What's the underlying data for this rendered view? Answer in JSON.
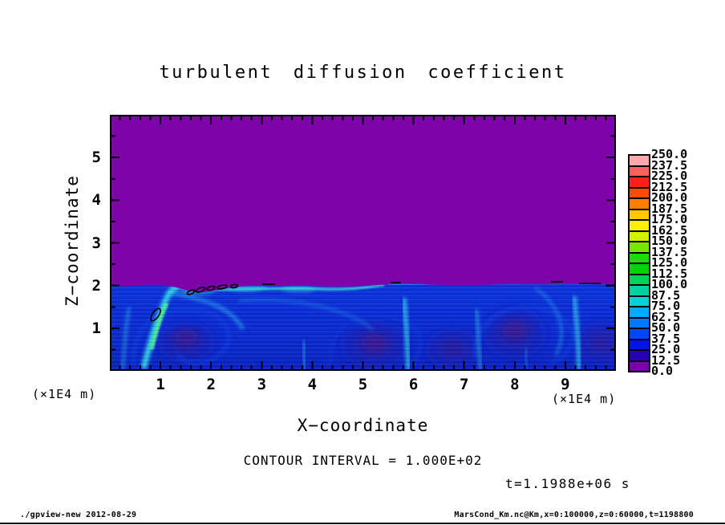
{
  "title": "turbulent diffusion coefficient",
  "axes": {
    "x": {
      "label": "X−coordinate",
      "unit": "(×1E4 m)",
      "ticks": [
        "1",
        "2",
        "3",
        "4",
        "5",
        "6",
        "7",
        "8",
        "9"
      ]
    },
    "y": {
      "label": "Z−coordinate",
      "unit": "(×1E4 m)",
      "ticks": [
        "1",
        "2",
        "3",
        "4",
        "5"
      ]
    }
  },
  "colorbar": {
    "labels": [
      "250.0",
      "237.5",
      "225.0",
      "212.5",
      "200.0",
      "187.5",
      "175.0",
      "162.5",
      "150.0",
      "137.5",
      "125.0",
      "112.5",
      "100.0",
      "87.5",
      "75.0",
      "62.5",
      "50.0",
      "37.5",
      "25.0",
      "12.5",
      "0.0"
    ],
    "colors": [
      "#ffaaaa",
      "#ff5f5f",
      "#ff1e1e",
      "#ff4b00",
      "#ff7d00",
      "#ffc800",
      "#fff000",
      "#d2f000",
      "#78e600",
      "#1edc00",
      "#00d200",
      "#00d25a",
      "#00d2a0",
      "#00d2dc",
      "#00aaff",
      "#0078ff",
      "#0046ff",
      "#0014e6",
      "#2800b4",
      "#7d00a5"
    ]
  },
  "annotations": {
    "contour_interval": "CONTOUR INTERVAL = 1.000E+02",
    "time": "t=1.1988e+06 s"
  },
  "footer": {
    "left": "./gpview-new  2012-08-29",
    "right": "MarsCond_Km.nc@Km,x=0:100000,z=0:60000,t=1198800"
  },
  "chart_data": {
    "type": "heatmap",
    "title": "turbulent diffusion coefficient",
    "xlabel": "X-coordinate (×1E4 m)",
    "ylabel": "Z-coordinate (×1E4 m)",
    "x_range_m": [
      0,
      100000
    ],
    "z_range_m": [
      0,
      60000
    ],
    "x_ticks": [
      1,
      2,
      3,
      4,
      5,
      6,
      7,
      8,
      9
    ],
    "z_ticks": [
      1,
      2,
      3,
      4,
      5
    ],
    "x_minor_tick_step": 0.2,
    "z_minor_tick_step": 0.5,
    "color_levels": [
      0,
      12.5,
      25,
      37.5,
      50,
      62.5,
      75,
      87.5,
      100,
      112.5,
      125,
      137.5,
      150,
      162.5,
      175,
      187.5,
      200,
      212.5,
      225,
      237.5,
      250
    ],
    "contour_interval": 100.0,
    "time_s": 1198800,
    "legend_position": "right colorbar",
    "field_summary": {
      "upper_region": "uniform value 0 (purple) above z ≈ 2×1E4 m",
      "lower_region": "turbulent boundary layer below z ≈ 2×1E4 m: blue field values ~12.5–75 with dark vortex cores near x ≈ 1,3.3,4.3,5.1,6.1,7.5,9.7 ×1E4 m and bright cyan filaments (~87.5–112.5) rising at x ≈ 0.8,3.7,5.9,7.3,9.3 ×1E4 m",
      "contour_marks": "closed 100-level contour loops near x≈0.9×1E4 m z≈1.3×1E4 m, a chain along the interface x≈(1.6–2.6)×1E4 m, and dashes along the interface near x≈(3.2–3.5) and (8.7–10)×1E4 m"
    }
  }
}
